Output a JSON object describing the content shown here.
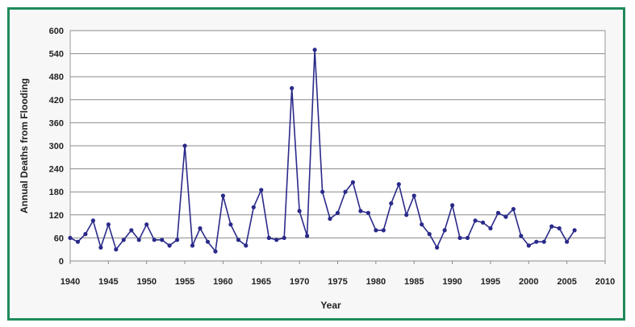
{
  "chart_data": {
    "type": "line",
    "xlabel": "Year",
    "ylabel": "Annual Deaths from Flooding",
    "xlim": [
      1940,
      2010
    ],
    "ylim": [
      0,
      600
    ],
    "x_ticks": [
      1940,
      1945,
      1950,
      1955,
      1960,
      1965,
      1970,
      1975,
      1980,
      1985,
      1990,
      1995,
      2000,
      2005,
      2010
    ],
    "y_ticks": [
      0,
      60,
      120,
      180,
      240,
      300,
      360,
      420,
      480,
      540,
      600
    ],
    "grid": true,
    "legend": "none",
    "series": [
      {
        "color": "#2a2a8a",
        "x": [
          1940,
          1941,
          1942,
          1943,
          1944,
          1945,
          1946,
          1947,
          1948,
          1949,
          1950,
          1951,
          1952,
          1953,
          1954,
          1955,
          1956,
          1957,
          1958,
          1959,
          1960,
          1961,
          1962,
          1963,
          1964,
          1965,
          1966,
          1967,
          1968,
          1969,
          1970,
          1971,
          1972,
          1973,
          1974,
          1975,
          1976,
          1977,
          1978,
          1979,
          1980,
          1981,
          1982,
          1983,
          1984,
          1985,
          1986,
          1987,
          1988,
          1989,
          1990,
          1991,
          1992,
          1993,
          1994,
          1995,
          1996,
          1997,
          1998,
          1999,
          2000,
          2001,
          2002,
          2003,
          2004,
          2005,
          2006
        ],
        "y": [
          60,
          50,
          70,
          105,
          35,
          95,
          30,
          55,
          80,
          55,
          95,
          55,
          55,
          40,
          55,
          300,
          40,
          85,
          50,
          25,
          170,
          95,
          55,
          40,
          140,
          185,
          60,
          55,
          60,
          450,
          130,
          65,
          550,
          180,
          110,
          125,
          180,
          205,
          130,
          125,
          80,
          80,
          150,
          200,
          120,
          170,
          95,
          70,
          35,
          80,
          145,
          60,
          60,
          105,
          100,
          85,
          125,
          115,
          135,
          65,
          40,
          50,
          50,
          90,
          85,
          50,
          80
        ]
      }
    ]
  }
}
